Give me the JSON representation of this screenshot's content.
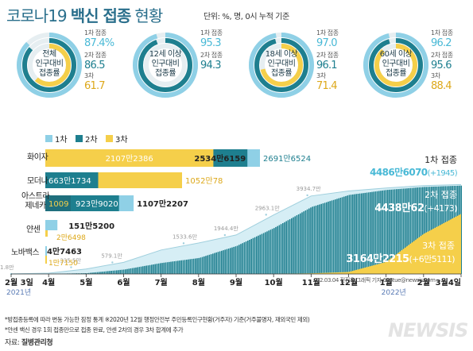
{
  "title": {
    "light1": "코로나19",
    "bold": "백신 접종",
    "light2": "현황",
    "unit": "단위: %, 명, 0시 누적 기준"
  },
  "summary": [
    {
      "label": [
        "전체",
        "인구대비",
        "접종률"
      ],
      "dose1_label": "1차 접종",
      "dose1": "87.4%",
      "dose2_label": "2차 접종",
      "dose2": "86.5",
      "dose3_label": "3차",
      "dose3": "61.7"
    },
    {
      "label": [
        "12세 이상",
        "인구대비",
        "접종률"
      ],
      "dose1_label": "1차 접종",
      "dose1": "95.3",
      "dose2_label": "2차 접종",
      "dose2": "94.3",
      "dose3_label": "",
      "dose3": ""
    },
    {
      "label": [
        "18세 이상",
        "인구대비",
        "접종률"
      ],
      "dose1_label": "1차 접종",
      "dose1": "97.0",
      "dose2_label": "2차 접종",
      "dose2": "96.1",
      "dose3_label": "3차",
      "dose3": "71.4"
    },
    {
      "label": [
        "60세 이상",
        "인구대비",
        "접종률"
      ],
      "dose1_label": "1차 접종",
      "dose1": "96.2",
      "dose2_label": "2차 접종",
      "dose2": "95.6",
      "dose3_label": "3차",
      "dose3": "88.4"
    }
  ],
  "colors": {
    "dose1": "#8fd0e6",
    "dose2": "#1e7f8f",
    "dose3": "#f5cf4a",
    "title": "#2a6f8c"
  },
  "chart_data": {
    "type": "bar",
    "legend": [
      "1차",
      "2차",
      "3차"
    ],
    "manufacturers": [
      {
        "name": [
          "화이자"
        ],
        "dose1": "2691만6524",
        "dose2": "2534만6159",
        "dose3": "2107만2386",
        "v1": 26916524,
        "v2": 25346159,
        "v3": 21072386
      },
      {
        "name": [
          "모더나"
        ],
        "dose1": "",
        "dose2": "663만1734",
        "dose3": "1052만78",
        "v1": 0,
        "v2": 6631734,
        "v3": 10520078
      },
      {
        "name": [
          "아스트라",
          "제네카"
        ],
        "dose1": "1107만2207",
        "dose2": "923만9020",
        "dose3": "1009",
        "v1": 11072207,
        "v2": 9239020,
        "v3": 1009
      },
      {
        "name": [
          "얀센"
        ],
        "dose1": "151만5200",
        "dose2": "",
        "dose3": "2만6498",
        "v1": 1515200,
        "v2": 0,
        "v3": 26498
      },
      {
        "name": [
          "노바백스"
        ],
        "dose1": "4만7463",
        "dose2": "",
        "dose3": "1만7150",
        "v1": 47463,
        "v2": 0,
        "v3": 17150
      }
    ],
    "cumulative": {
      "x_ticks": [
        "2월 3일",
        "4월",
        "5월",
        "6월",
        "7월",
        "8월",
        "9월",
        "10월",
        "11월",
        "12월",
        "1월",
        "2월",
        "3월4일"
      ],
      "year_labels": [
        "2021년",
        "2022년"
      ],
      "dose1_points": [
        {
          "label": "1.8만",
          "value": 18000
        },
        {
          "label": "335.5만",
          "value": 3355000
        },
        {
          "label": "579.1만",
          "value": 5791000
        },
        {
          "label": "1533.6만",
          "value": 15336000
        },
        {
          "label": "1944.4만",
          "value": 19444000
        },
        {
          "label": "2963.1만",
          "value": 29631000
        },
        {
          "label": "3934.7만",
          "value": 39347000
        }
      ],
      "series": [
        {
          "name": "1차 접종",
          "value": "4486만6070",
          "change": "(+1945)"
        },
        {
          "name": "2차 접종",
          "value": "4438만62",
          "change": "(+4173)"
        },
        {
          "name": "3차 접종",
          "value": "3164만2215",
          "change": "(+6만5111)"
        }
      ]
    }
  },
  "footnotes": [
    "*방접종등록에 따라 변동 가능한 잠정 통계   ※2020년 12월 행정안전부 주민등록인구현황(거주자) 기준(거주불명자, 재외국민 제외)",
    "*얀센 백신 경우 1회 접종만으로 접종 완료, 얀센 2차의 경우 3차 합계에 추가"
  ],
  "source": {
    "prefix": "자료:",
    "org": "질병관리청"
  },
  "credit": "22.03.04  전진우 그래픽  기자 618tue@newsis.com",
  "logo": "NEWSIS"
}
